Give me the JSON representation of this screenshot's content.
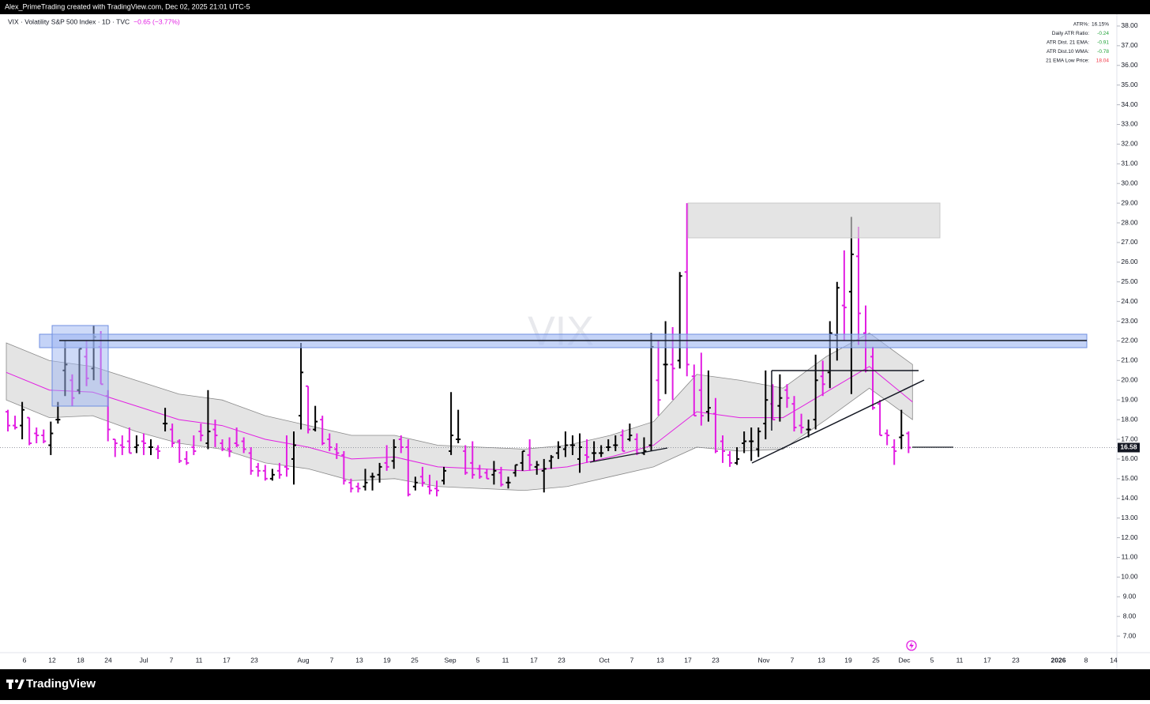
{
  "chart_data": {
    "type": "ohlc",
    "header": "Alex_PrimeTrading created with TradingView.com, Dec 02, 2025 21:01 UTC-5",
    "symbol": "VIX · Volatility S&P 500 Index · 1D · TVC",
    "change": "−0.65 (−3.77%)",
    "watermark": "VIX",
    "brand": "TradingView",
    "up_color": "#000000",
    "down_color": "#e21ee2",
    "stats": [
      {
        "label": "ATR%:",
        "value": "16.15%",
        "color": "#131722"
      },
      {
        "label": "Daily ATR Ratio:",
        "value": "-0.24",
        "color": "#22a33a"
      },
      {
        "label": "ATR Dist. 21 EMA:",
        "value": "-0.91",
        "color": "#22a33a"
      },
      {
        "label": "ATR Dist.10 WMA:",
        "value": "-0.78",
        "color": "#22a33a"
      },
      {
        "label": "21 EMA Low Price:",
        "value": "18.04",
        "color": "#f23645"
      }
    ],
    "ylim": [
      6.16,
      38.6
    ],
    "yticks": [
      {
        "value": 7,
        "label": "7.00"
      },
      {
        "value": 8,
        "label": "8.00"
      },
      {
        "value": 9,
        "label": "9.00"
      },
      {
        "value": 10,
        "label": "10.00"
      },
      {
        "value": 11,
        "label": "11.00"
      },
      {
        "value": 12,
        "label": "12.00"
      },
      {
        "value": 13,
        "label": "13.00"
      },
      {
        "value": 14,
        "label": "14.00"
      },
      {
        "value": 15,
        "label": "15.00"
      },
      {
        "value": 16,
        "label": "16.00"
      },
      {
        "value": 17,
        "label": "17.00"
      },
      {
        "value": 18,
        "label": "18.00"
      },
      {
        "value": 19,
        "label": "19.00"
      },
      {
        "value": 20,
        "label": "20.00"
      },
      {
        "value": 21,
        "label": "21.00"
      },
      {
        "value": 22,
        "label": "22.00"
      },
      {
        "value": 23,
        "label": "23.00"
      },
      {
        "value": 24,
        "label": "24.00"
      },
      {
        "value": 25,
        "label": "25.00"
      },
      {
        "value": 26,
        "label": "26.00"
      },
      {
        "value": 27,
        "label": "27.00"
      },
      {
        "value": 28,
        "label": "28.00"
      },
      {
        "value": 29,
        "label": "29.00"
      },
      {
        "value": 30,
        "label": "30.00"
      },
      {
        "value": 31,
        "label": "31.00"
      },
      {
        "value": 32,
        "label": "32.00"
      },
      {
        "value": 33,
        "label": "33.00"
      },
      {
        "value": 34,
        "label": "34.00"
      },
      {
        "value": 35,
        "label": "35.00"
      },
      {
        "value": 36,
        "label": "36.00"
      },
      {
        "value": 37,
        "label": "37.00"
      },
      {
        "value": 38,
        "label": "38.00"
      }
    ],
    "xtick_labels": [
      "6",
      "12",
      "18",
      "24",
      "Jul",
      "7",
      "11",
      "17",
      "23",
      "Aug",
      "7",
      "13",
      "19",
      "25",
      "Sep",
      "5",
      "11",
      "17",
      "23",
      "Oct",
      "7",
      "13",
      "17",
      "23",
      "Nov",
      "7",
      "13",
      "19",
      "25",
      "Dec",
      "5",
      "11",
      "17",
      "23",
      "2026",
      "8",
      "14"
    ],
    "last_price": 16.58,
    "ohlc": [
      [
        18.4,
        18.5,
        17.4,
        17.7
      ],
      [
        17.7,
        18.2,
        17.5,
        17.6
      ],
      [
        17.7,
        18.9,
        17.0,
        18.5
      ],
      [
        18.1,
        18.1,
        16.7,
        16.8
      ],
      [
        17.3,
        17.6,
        16.8,
        17.2
      ],
      [
        17.2,
        17.5,
        16.8,
        16.9
      ],
      [
        16.7,
        17.9,
        16.2,
        17.3
      ],
      [
        18.0,
        18.9,
        17.8,
        18.0
      ],
      [
        20.5,
        22.0,
        19.2,
        20.8
      ],
      [
        20.0,
        20.3,
        18.7,
        19.1
      ],
      [
        19.5,
        21.6,
        19.3,
        21.6
      ],
      [
        21.2,
        22.0,
        19.7,
        20.1
      ],
      [
        20.6,
        22.8,
        20.0,
        22.2
      ],
      [
        21.7,
        22.5,
        19.8,
        19.8
      ],
      [
        19.2,
        19.5,
        16.9,
        17.5
      ],
      [
        17.0,
        17.0,
        16.1,
        16.8
      ],
      [
        16.7,
        17.2,
        16.2,
        16.6
      ],
      [
        16.9,
        17.6,
        16.3,
        16.3
      ],
      [
        16.6,
        17.2,
        16.3,
        16.7
      ],
      [
        16.9,
        17.3,
        16.2,
        16.8
      ],
      [
        16.6,
        17.0,
        16.2,
        16.6
      ],
      [
        16.5,
        16.7,
        16.0,
        16.4
      ],
      [
        17.8,
        18.6,
        17.4,
        17.8
      ],
      [
        17.5,
        17.8,
        16.6,
        16.8
      ],
      [
        16.9,
        17.0,
        15.8,
        15.9
      ],
      [
        16.0,
        16.4,
        15.7,
        15.8
      ],
      [
        16.6,
        17.2,
        16.2,
        16.4
      ],
      [
        17.4,
        17.8,
        16.9,
        17.2
      ],
      [
        16.8,
        19.5,
        16.5,
        17.4
      ],
      [
        17.5,
        18.0,
        16.6,
        17.2
      ],
      [
        16.8,
        17.0,
        16.4,
        16.5
      ],
      [
        16.5,
        17.1,
        16.1,
        16.4
      ],
      [
        16.8,
        17.6,
        16.6,
        16.7
      ],
      [
        16.9,
        17.1,
        16.3,
        16.5
      ],
      [
        16.3,
        16.6,
        15.2,
        15.4
      ],
      [
        15.6,
        15.8,
        15.1,
        15.4
      ],
      [
        15.4,
        15.7,
        14.9,
        15.0
      ],
      [
        15.0,
        15.5,
        14.9,
        15.2
      ],
      [
        15.4,
        15.8,
        15.0,
        15.2
      ],
      [
        15.6,
        17.2,
        15.1,
        15.5
      ],
      [
        16.0,
        17.4,
        14.7,
        16.7
      ],
      [
        18.2,
        21.9,
        17.5,
        20.4
      ],
      [
        19.7,
        19.7,
        17.3,
        17.5
      ],
      [
        17.5,
        18.7,
        17.4,
        17.9
      ],
      [
        18.0,
        18.2,
        16.7,
        16.8
      ],
      [
        17.0,
        17.3,
        16.4,
        16.6
      ],
      [
        16.5,
        16.8,
        16.0,
        16.3
      ],
      [
        16.2,
        16.4,
        14.7,
        14.9
      ],
      [
        14.8,
        15.0,
        14.3,
        14.5
      ],
      [
        14.6,
        14.8,
        14.3,
        14.5
      ],
      [
        14.6,
        15.5,
        14.4,
        14.8
      ],
      [
        15.1,
        15.3,
        14.4,
        15.1
      ],
      [
        15.2,
        15.8,
        14.8,
        15.6
      ],
      [
        15.8,
        16.7,
        15.4,
        15.6
      ],
      [
        15.9,
        17.0,
        15.5,
        16.6
      ],
      [
        17.0,
        17.2,
        16.3,
        16.6
      ],
      [
        16.6,
        17.0,
        14.1,
        14.2
      ],
      [
        14.6,
        15.1,
        14.4,
        14.8
      ],
      [
        15.1,
        15.6,
        14.6,
        14.8
      ],
      [
        14.6,
        15.2,
        14.2,
        14.4
      ],
      [
        14.5,
        14.9,
        14.1,
        14.4
      ],
      [
        14.9,
        15.6,
        14.7,
        15.4
      ],
      [
        16.4,
        19.4,
        16.2,
        17.2
      ],
      [
        17.0,
        18.5,
        16.8,
        17.0
      ],
      [
        16.4,
        16.7,
        15.2,
        15.3
      ],
      [
        15.8,
        16.9,
        15.0,
        15.2
      ],
      [
        15.5,
        15.7,
        15.0,
        15.1
      ],
      [
        15.3,
        15.5,
        15.0,
        15.0
      ],
      [
        15.2,
        15.9,
        14.7,
        15.4
      ],
      [
        15.3,
        15.6,
        14.6,
        14.7
      ],
      [
        14.8,
        15.1,
        14.5,
        14.8
      ],
      [
        15.3,
        15.7,
        15.1,
        15.7
      ],
      [
        15.8,
        16.4,
        15.4,
        16.4
      ],
      [
        16.2,
        17.0,
        15.4,
        15.7
      ],
      [
        15.6,
        15.9,
        15.2,
        15.7
      ],
      [
        15.4,
        16.0,
        14.3,
        15.5
      ],
      [
        15.9,
        16.2,
        15.5,
        16.1
      ],
      [
        16.3,
        16.9,
        16.0,
        16.6
      ],
      [
        16.5,
        17.4,
        16.1,
        16.7
      ],
      [
        16.7,
        17.2,
        16.2,
        16.7
      ],
      [
        16.0,
        17.3,
        15.3,
        16.6
      ],
      [
        16.2,
        17.0,
        15.8,
        16.1
      ],
      [
        16.3,
        16.9,
        15.9,
        16.3
      ],
      [
        16.3,
        16.7,
        16.1,
        16.3
      ],
      [
        16.6,
        17.0,
        16.4,
        16.6
      ],
      [
        16.7,
        17.2,
        16.4,
        16.7
      ],
      [
        17.2,
        17.5,
        16.4,
        16.4
      ],
      [
        17.0,
        17.8,
        16.9,
        17.2
      ],
      [
        17.0,
        17.3,
        16.2,
        16.3
      ],
      [
        16.3,
        17.1,
        16.2,
        16.4
      ],
      [
        16.7,
        22.4,
        16.4,
        21.7
      ],
      [
        20.0,
        22.0,
        18.2,
        19.0
      ],
      [
        20.8,
        23.0,
        19.3,
        20.8
      ],
      [
        20.8,
        22.7,
        19.0,
        20.6
      ],
      [
        21.0,
        25.5,
        20.6,
        25.3
      ],
      [
        25.5,
        29.0,
        20.2,
        20.8
      ],
      [
        20.2,
        20.8,
        18.2,
        18.2
      ],
      [
        19.5,
        21.4,
        17.7,
        18.2
      ],
      [
        18.4,
        20.5,
        17.9,
        18.6
      ],
      [
        18.3,
        19.1,
        16.3,
        16.4
      ],
      [
        16.9,
        17.2,
        15.8,
        16.4
      ],
      [
        16.2,
        16.4,
        15.6,
        15.8
      ],
      [
        15.8,
        16.6,
        15.7,
        16.0
      ],
      [
        16.8,
        17.4,
        16.3,
        16.9
      ],
      [
        16.9,
        17.6,
        15.9,
        16.9
      ],
      [
        16.5,
        17.6,
        16.1,
        17.4
      ],
      [
        17.8,
        20.5,
        17.0,
        19.0
      ],
      [
        18.8,
        19.8,
        18.0,
        18.0
      ],
      [
        18.7,
        20.3,
        17.9,
        19.1
      ],
      [
        19.5,
        19.8,
        18.6,
        19.1
      ],
      [
        18.8,
        19.2,
        17.4,
        17.6
      ],
      [
        17.7,
        18.3,
        17.3,
        17.6
      ],
      [
        17.5,
        18.0,
        17.1,
        17.5
      ],
      [
        18.0,
        21.3,
        17.5,
        20.0
      ],
      [
        20.2,
        21.0,
        19.2,
        19.8
      ],
      [
        20.4,
        23.0,
        19.6,
        22.4
      ],
      [
        22.3,
        25.0,
        21.0,
        24.7
      ],
      [
        23.8,
        26.6,
        22.0,
        23.7
      ],
      [
        24.5,
        28.3,
        19.3,
        26.4
      ],
      [
        26.3,
        27.8,
        21.8,
        23.4
      ],
      [
        22.4,
        23.8,
        20.4,
        20.5
      ],
      [
        21.2,
        21.7,
        18.5,
        18.6
      ],
      [
        18.8,
        19.0,
        17.2,
        17.2
      ],
      [
        17.3,
        17.5,
        16.7,
        17.2
      ],
      [
        16.6,
        17.0,
        15.7,
        16.4
      ],
      [
        17.1,
        18.5,
        16.5,
        17.2
      ],
      [
        17.3,
        17.4,
        16.3,
        16.58
      ]
    ],
    "ema": {
      "color": "#e21ee2",
      "values": [
        20.4,
        19.5,
        19.4,
        18.7,
        18.0,
        17.7,
        17.0,
        16.6,
        16.0,
        16.1,
        15.6,
        15.5,
        15.4,
        15.6,
        16.1,
        16.7,
        18.4,
        18.1,
        18.1,
        19.4,
        20.7,
        18.9
      ]
    },
    "band": {
      "color": "#d9d9d9",
      "upper": [
        21.9,
        21.0,
        20.7,
        20.0,
        19.3,
        19.0,
        18.2,
        17.7,
        17.2,
        17.2,
        16.7,
        16.6,
        16.5,
        16.7,
        17.2,
        17.9,
        20.3,
        20.0,
        19.6,
        21.2,
        22.4,
        20.8
      ],
      "lower": [
        19.0,
        18.1,
        18.2,
        17.4,
        16.8,
        16.5,
        15.8,
        15.5,
        14.9,
        15.0,
        14.6,
        14.5,
        14.4,
        14.6,
        15.1,
        15.6,
        16.6,
        16.4,
        16.5,
        18.0,
        19.6,
        18.0
      ]
    }
  }
}
